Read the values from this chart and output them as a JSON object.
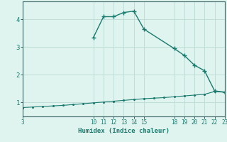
{
  "title": "",
  "xlabel": "Humidex (Indice chaleur)",
  "bg_color": "#dff4ef",
  "grid_color": "#c0ddd8",
  "line_color": "#1a7a6e",
  "spine_color": "#3a6060",
  "x_upper": [
    10,
    11,
    12,
    13,
    14,
    15,
    18,
    19,
    20,
    21,
    22,
    23
  ],
  "y_upper": [
    3.35,
    4.1,
    4.1,
    4.25,
    4.3,
    3.65,
    2.95,
    2.7,
    2.35,
    2.15,
    1.42,
    1.38
  ],
  "x_lower": [
    3,
    4,
    5,
    6,
    7,
    8,
    9,
    10,
    11,
    12,
    13,
    14,
    15,
    16,
    17,
    18,
    19,
    20,
    21,
    22,
    23
  ],
  "y_lower": [
    0.82,
    0.84,
    0.86,
    0.88,
    0.9,
    0.93,
    0.96,
    0.99,
    1.02,
    1.05,
    1.08,
    1.11,
    1.14,
    1.16,
    1.18,
    1.21,
    1.24,
    1.27,
    1.3,
    1.4,
    1.37
  ],
  "xticks": [
    3,
    10,
    11,
    12,
    13,
    14,
    15,
    18,
    19,
    20,
    21,
    22,
    23
  ],
  "yticks": [
    1,
    2,
    3,
    4
  ],
  "xlim": [
    3,
    23
  ],
  "ylim": [
    0.5,
    4.65
  ]
}
